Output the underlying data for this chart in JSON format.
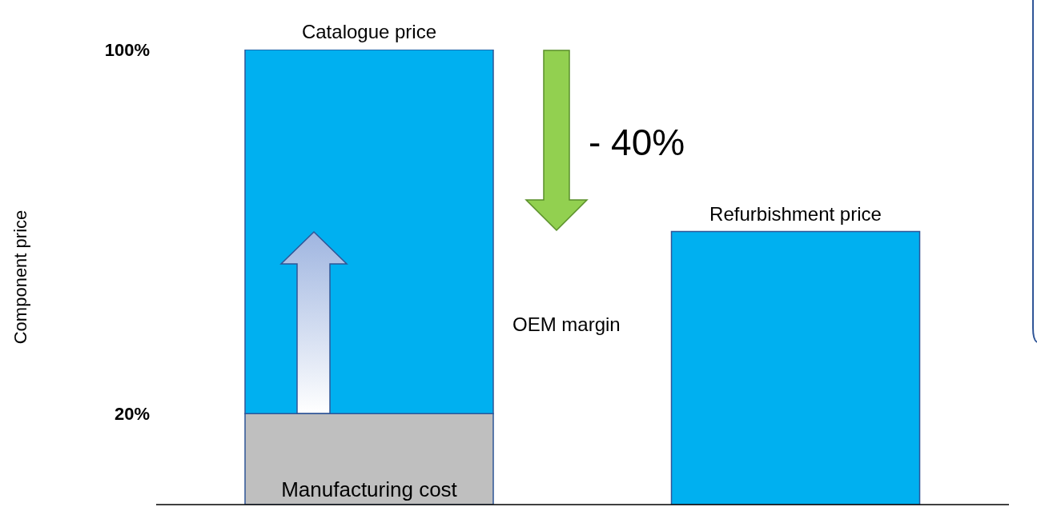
{
  "chart_data": {
    "type": "bar",
    "stacked": true,
    "ylabel": "Component price",
    "categories": [
      "Catalogue price",
      "Refurbishment price"
    ],
    "series": [
      {
        "name": "Manufacturing cost",
        "color": "#bfbfbf",
        "values": [
          20,
          null
        ]
      },
      {
        "color": "#00b0f0",
        "values": [
          80,
          60
        ]
      }
    ],
    "ylim": [
      0,
      100
    ],
    "yticks": [
      {
        "value": 20,
        "label": "20%"
      },
      {
        "value": 100,
        "label": "100%"
      }
    ],
    "annotations": [
      "OEM margin",
      "- 40%"
    ],
    "grid": false,
    "legend": false
  }
}
